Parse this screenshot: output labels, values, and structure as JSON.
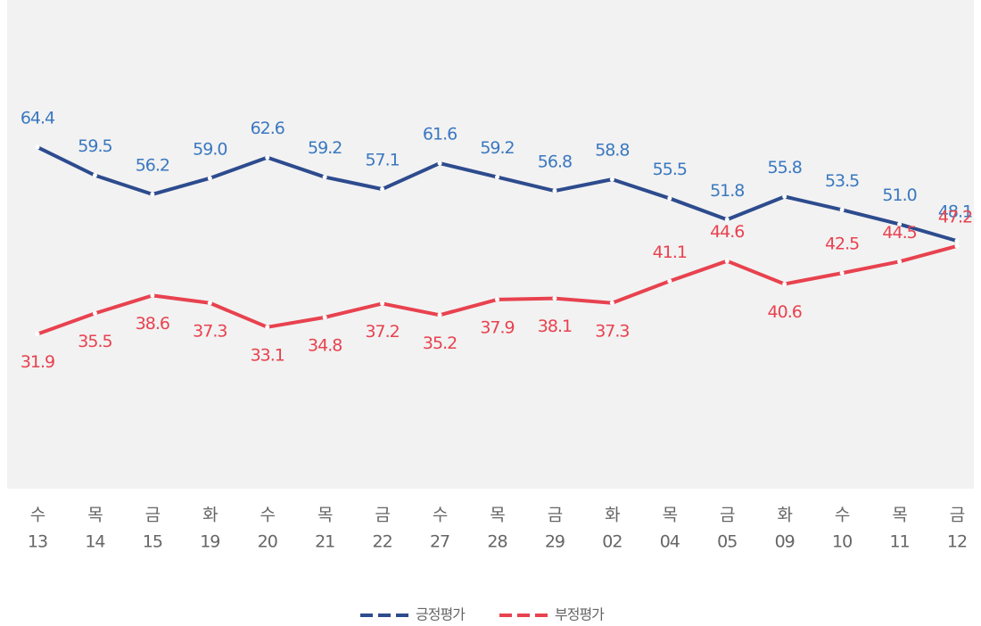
{
  "chart_data": {
    "type": "line",
    "weekdays": [
      "수",
      "목",
      "금",
      "화",
      "수",
      "목",
      "금",
      "수",
      "목",
      "금",
      "화",
      "목",
      "금",
      "화",
      "수",
      "목",
      "금"
    ],
    "categories": [
      "13",
      "14",
      "15",
      "19",
      "20",
      "21",
      "22",
      "27",
      "28",
      "29",
      "02",
      "04",
      "05",
      "09",
      "10",
      "11",
      "12"
    ],
    "series": [
      {
        "name": "긍정평가",
        "color": "#2d4b8e",
        "label_color": "#3a78c0",
        "values": [
          64.4,
          59.5,
          56.2,
          59.0,
          62.6,
          59.2,
          57.1,
          61.6,
          59.2,
          56.8,
          58.8,
          55.5,
          51.8,
          55.8,
          53.5,
          51.0,
          48.1
        ],
        "value_labels": [
          "64.4",
          "59.5",
          "56.2",
          "59.0",
          "62.6",
          "59.2",
          "57.1",
          "61.6",
          "59.2",
          "56.8",
          "58.8",
          "55.5",
          "51.8",
          "55.8",
          "53.5",
          "51.0",
          "48.1"
        ]
      },
      {
        "name": "부정평가",
        "color": "#e8424f",
        "label_color": "#e8424f",
        "values": [
          31.9,
          35.5,
          38.6,
          37.3,
          33.1,
          34.8,
          37.2,
          35.2,
          37.9,
          38.1,
          37.3,
          41.1,
          44.6,
          40.6,
          42.5,
          44.5,
          47.2
        ],
        "value_labels": [
          "31.9",
          "35.5",
          "38.6",
          "37.3",
          "33.1",
          "34.8",
          "37.2",
          "35.2",
          "37.9",
          "38.1",
          "37.3",
          "41.1",
          "44.6",
          "40.6",
          "42.5",
          "44.5",
          "47.2"
        ]
      }
    ],
    "ylim": [
      5,
      90
    ],
    "legend": "bottom"
  }
}
